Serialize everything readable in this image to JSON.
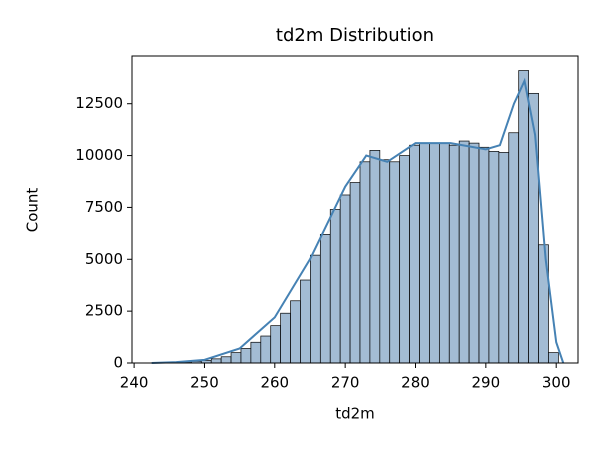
{
  "chart_data": {
    "type": "histogram",
    "title": "td2m Distribution",
    "x_label": "td2m",
    "y_label": "Count",
    "bins": [
      242.5,
      243.91,
      245.32,
      246.73,
      248.14,
      249.55,
      250.96,
      252.37,
      253.78,
      255.19,
      256.6,
      258.01,
      259.42,
      260.83,
      262.24,
      263.65,
      265.06,
      266.47,
      267.88,
      269.29,
      270.7,
      272.11,
      273.52,
      274.93,
      276.34,
      277.75,
      279.16,
      280.57,
      281.98,
      283.39,
      284.8,
      286.21,
      287.62,
      289.03,
      290.44,
      291.85,
      293.26,
      294.67,
      296.08,
      297.49,
      298.9,
      300.31
    ],
    "values": [
      0,
      20,
      30,
      50,
      80,
      120,
      200,
      300,
      500,
      700,
      1000,
      1300,
      1800,
      2400,
      3000,
      4000,
      5200,
      6200,
      7400,
      8100,
      8700,
      9700,
      10250,
      9800,
      9700,
      10000,
      10500,
      10600,
      10600,
      10600,
      10500,
      10700,
      10600,
      10400,
      10200,
      10150,
      11100,
      14100,
      13000,
      5700,
      500
    ],
    "color": "#a3bcd4",
    "edge_color": "#000000",
    "kde": {
      "x": [
        242.5,
        246,
        250,
        255,
        260,
        265,
        270,
        273,
        276,
        280,
        285,
        290,
        292,
        294,
        295.5,
        297,
        298.5,
        300,
        301
      ],
      "values": [
        0,
        40,
        150,
        700,
        2200,
        5000,
        8500,
        10000,
        9700,
        10600,
        10600,
        10300,
        10500,
        12500,
        13600,
        11000,
        5000,
        1000,
        0
      ],
      "color": "#4682b4"
    },
    "xlim": [
      239.7,
      303.1
    ],
    "ylim": [
      0,
      14800
    ],
    "xticks": [
      240,
      250,
      260,
      270,
      280,
      290,
      300
    ],
    "yticks": [
      0,
      2500,
      5000,
      7500,
      10000,
      12500
    ]
  }
}
